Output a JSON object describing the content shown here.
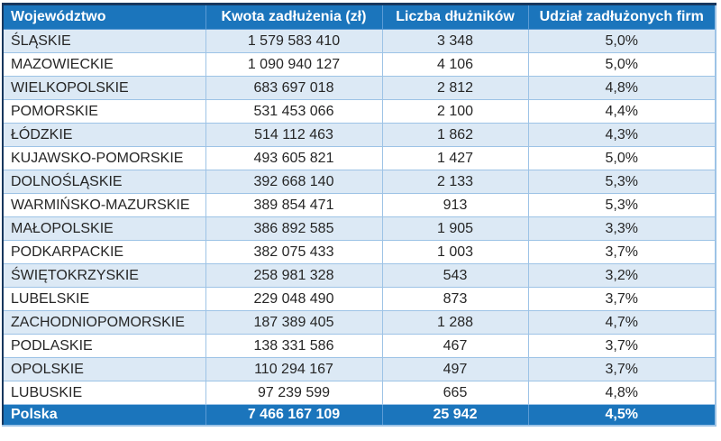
{
  "colors": {
    "header_bg": "#1B75BC",
    "total_row_bg": "#1B75BC",
    "banded_row_bg": "#DCE9F5",
    "plain_row_bg": "#FFFFFF",
    "gridline": "#9DC3E6",
    "outer_border": "#17375E",
    "header_text": "#FFFFFF",
    "body_text": "#262626"
  },
  "table": {
    "columns": [
      "Województwo",
      "Kwota zadłużenia (zł)",
      "Liczba dłużników",
      "Udział zadłużonych firm"
    ],
    "rows": [
      {
        "region": "ŚLĄSKIE",
        "debt": "1 579 583 410",
        "debtors": "3 348",
        "share": "5,0%"
      },
      {
        "region": "MAZOWIECKIE",
        "debt": "1 090 940 127",
        "debtors": "4 106",
        "share": "5,0%"
      },
      {
        "region": "WIELKOPOLSKIE",
        "debt": "683 697 018",
        "debtors": "2 812",
        "share": "4,8%"
      },
      {
        "region": "POMORSKIE",
        "debt": "531 453 066",
        "debtors": "2 100",
        "share": "4,4%"
      },
      {
        "region": "ŁÓDZKIE",
        "debt": "514 112 463",
        "debtors": "1 862",
        "share": "4,3%"
      },
      {
        "region": "KUJAWSKO-POMORSKIE",
        "debt": "493 605 821",
        "debtors": "1 427",
        "share": "5,0%"
      },
      {
        "region": "DOLNOŚLĄSKIE",
        "debt": "392 668 140",
        "debtors": "2 133",
        "share": "5,3%"
      },
      {
        "region": "WARMIŃSKO-MAZURSKIE",
        "debt": "389 854 471",
        "debtors": "913",
        "share": "5,3%"
      },
      {
        "region": "MAŁOPOLSKIE",
        "debt": "386 892 585",
        "debtors": "1 905",
        "share": "3,3%"
      },
      {
        "region": "PODKARPACKIE",
        "debt": "382 075 433",
        "debtors": "1 003",
        "share": "3,7%"
      },
      {
        "region": "ŚWIĘTOKRZYSKIE",
        "debt": "258 981 328",
        "debtors": "543",
        "share": "3,2%"
      },
      {
        "region": "LUBELSKIE",
        "debt": "229 048 490",
        "debtors": "873",
        "share": "3,7%"
      },
      {
        "region": "ZACHODNIOPOMORSKIE",
        "debt": "187 389 405",
        "debtors": "1 288",
        "share": "4,7%"
      },
      {
        "region": "PODLASKIE",
        "debt": "138 331 586",
        "debtors": "467",
        "share": "3,7%"
      },
      {
        "region": "OPOLSKIE",
        "debt": "110 294 167",
        "debtors": "497",
        "share": "3,7%"
      },
      {
        "region": "LUBUSKIE",
        "debt": "97 239 599",
        "debtors": "665",
        "share": "4,8%"
      }
    ],
    "total": {
      "region": "Polska",
      "debt": "7 466 167 109",
      "debtors": "25 942",
      "share": "4,5%"
    }
  },
  "chart_data": {
    "type": "table",
    "columns": [
      "Województwo",
      "Kwota zadłużenia (zł)",
      "Liczba dłużników",
      "Udział zadłużonych firm"
    ],
    "rows": [
      [
        "ŚLĄSKIE",
        1579583410,
        3348,
        "5,0%"
      ],
      [
        "MAZOWIECKIE",
        1090940127,
        4106,
        "5,0%"
      ],
      [
        "WIELKOPOLSKIE",
        683697018,
        2812,
        "4,8%"
      ],
      [
        "POMORSKIE",
        531453066,
        2100,
        "4,4%"
      ],
      [
        "ŁÓDZKIE",
        514112463,
        1862,
        "4,3%"
      ],
      [
        "KUJAWSKO-POMORSKIE",
        493605821,
        1427,
        "5,0%"
      ],
      [
        "DOLNOŚLĄSKIE",
        392668140,
        2133,
        "5,3%"
      ],
      [
        "WARMIŃSKO-MAZURSKIE",
        389854471,
        913,
        "5,3%"
      ],
      [
        "MAŁOPOLSKIE",
        386892585,
        1905,
        "3,3%"
      ],
      [
        "PODKARPACKIE",
        382075433,
        1003,
        "3,7%"
      ],
      [
        "ŚWIĘTOKRZYSKIE",
        258981328,
        543,
        "3,2%"
      ],
      [
        "LUBELSKIE",
        229048490,
        873,
        "3,7%"
      ],
      [
        "ZACHODNIOPOMORSKIE",
        187389405,
        1288,
        "4,7%"
      ],
      [
        "PODLASKIE",
        138331586,
        467,
        "3,7%"
      ],
      [
        "OPOLSKIE",
        110294167,
        497,
        "3,7%"
      ],
      [
        "LUBUSKIE",
        97239599,
        665,
        "4,8%"
      ]
    ],
    "total_row": [
      "Polska",
      7466167109,
      25942,
      "4,5%"
    ]
  }
}
